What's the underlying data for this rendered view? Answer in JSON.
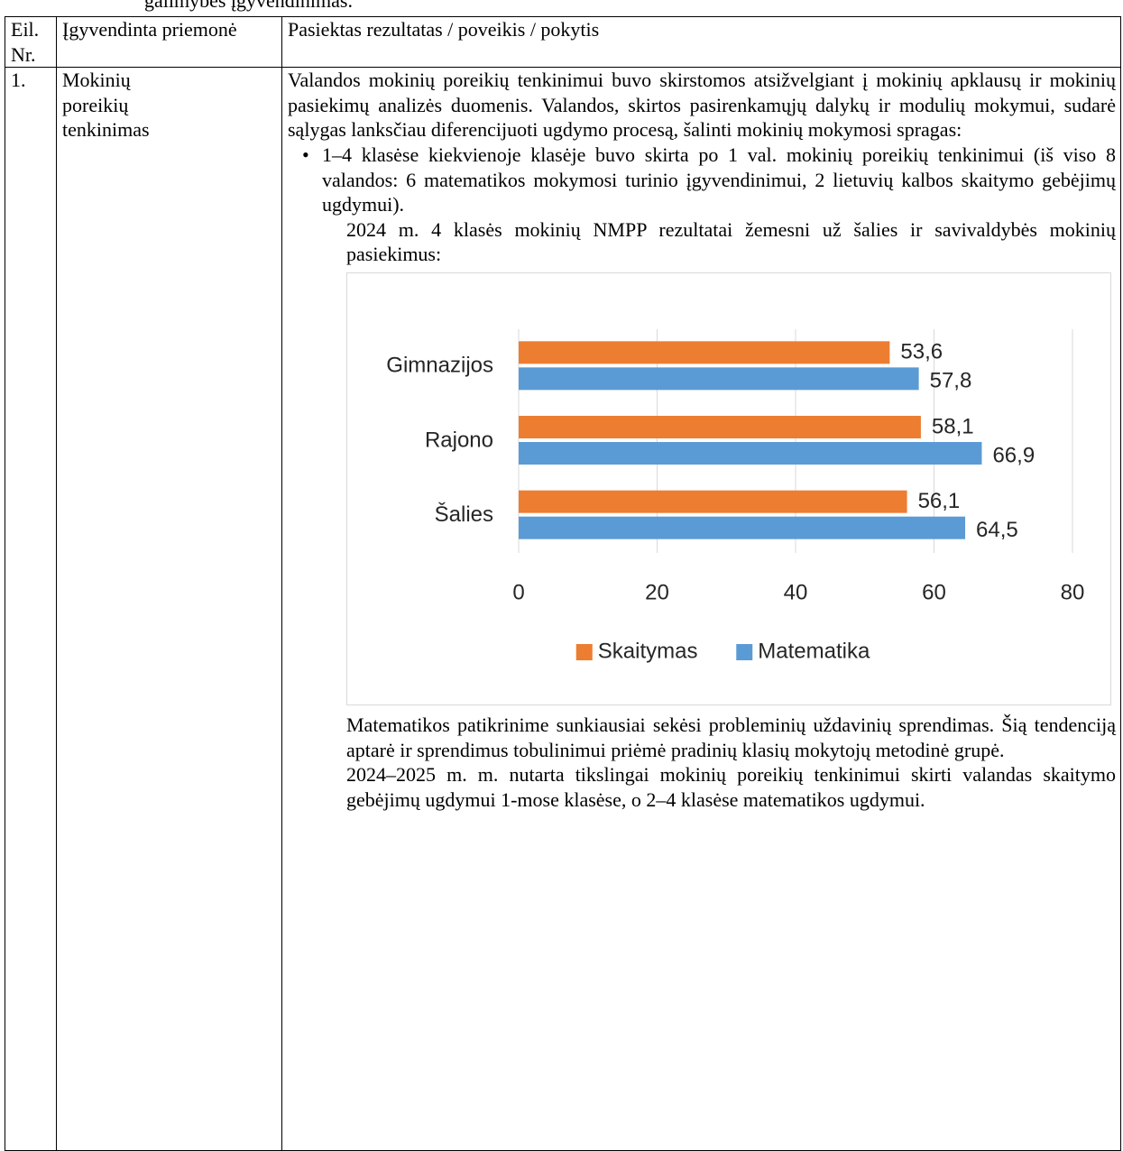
{
  "page_fragment": "galimybės įgyvendinimas.",
  "table": {
    "headers": [
      "Eil. Nr.",
      "Įgyvendinta priemonė",
      "Pasiektas rezultatas / poveikis / pokytis"
    ],
    "rows": [
      {
        "number": "1.",
        "measure": "Mokinių poreikių tenkinimas",
        "intro": "Valandos mokinių poreikių tenkinimui buvo skirstomos atsižvelgiant į mokinių apklausų ir mokinių pasiekimų analizės duomenis. Valandos, skirtos pasirenkamųjų dalykų ir modulių mokymui, sudarė sąlygas lanksčiau diferencijuoti ugdymo procesą, šalinti mokinių mokymosi spragas:",
        "bullets": [
          "1–4 klasėse kiekvienoje klasėje buvo skirta po 1 val. mokinių poreikių tenkinimui (iš viso 8 valandos: 6 matematikos mokymosi turinio įgyvendinimui, 2 lietuvių kalbos skaitymo gebėjimų ugdymui)."
        ],
        "chart_intro": "2024 m. 4 klasės mokinių NMPP rezultatai žemesni už šalies ir savivaldybės mokinių pasiekimus:",
        "after_chart": [
          "Matematikos patikrinime sunkiausiai sekėsi probleminių uždavinių sprendimas. Šią tendenciją aptarė ir sprendimus tobulinimui priėmė pradinių klasių mokytojų metodinė grupė.",
          "2024–2025 m. m. nutarta tikslingai mokinių poreikių tenkinimui skirti valandas skaitymo gebėjimų ugdymui 1-mose klasėse, o 2–4 klasėse matematikos ugdymui."
        ]
      }
    ]
  },
  "chart_data": {
    "type": "hbar",
    "categories": [
      "Gimnazijos",
      "Rajono",
      "Šalies"
    ],
    "series": [
      {
        "name": "Skaitymas",
        "color": "#ed7d31",
        "values": [
          53.6,
          58.1,
          56.1
        ],
        "value_labels": [
          "53,6",
          "58,1",
          "56,1"
        ]
      },
      {
        "name": "Matematika",
        "color": "#5b9bd5",
        "values": [
          57.8,
          66.9,
          64.5
        ],
        "value_labels": [
          "57,8",
          "66,9",
          "64,5"
        ]
      }
    ],
    "xlim": [
      0,
      80
    ],
    "xticks": [
      0,
      20,
      40,
      60,
      80
    ],
    "grid": true,
    "legend": "bottom"
  }
}
